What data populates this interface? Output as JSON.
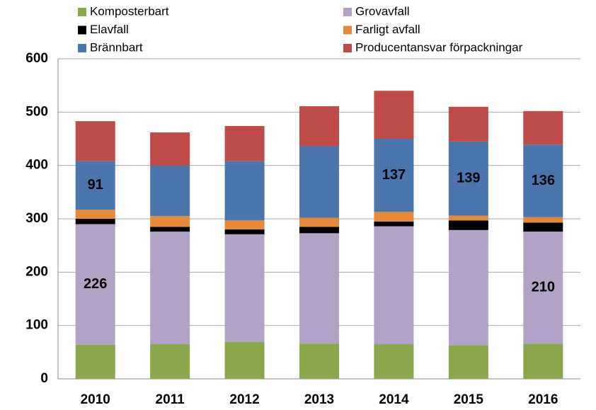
{
  "chart_data": {
    "type": "stacked_bar",
    "categories": [
      "2010",
      "2011",
      "2012",
      "2013",
      "2014",
      "2015",
      "2016"
    ],
    "series": [
      {
        "name": "Komposterbart",
        "color": "#8aa84b",
        "values": [
          64,
          65,
          69,
          66,
          65,
          63,
          66
        ]
      },
      {
        "name": "Grovavfall",
        "color": "#b3a2c7",
        "values": [
          226,
          211,
          202,
          207,
          221,
          216,
          210
        ],
        "value_labels": [
          "226",
          null,
          null,
          null,
          null,
          null,
          "210"
        ]
      },
      {
        "name": "Elavfall",
        "color": "#000000",
        "values": [
          10,
          9,
          9,
          12,
          9,
          18,
          17
        ]
      },
      {
        "name": "Farligt avfall",
        "color": "#e8893a",
        "values": [
          17,
          20,
          17,
          17,
          18,
          9,
          10
        ]
      },
      {
        "name": "Brännbart",
        "color": "#4a76ad",
        "values": [
          91,
          95,
          111,
          134,
          137,
          139,
          136
        ],
        "value_labels": [
          "91",
          null,
          null,
          null,
          "137",
          "139",
          "136"
        ]
      },
      {
        "name": "Producentansvar förpackningar",
        "color": "#be4b48",
        "values": [
          75,
          62,
          66,
          75,
          90,
          65,
          63
        ]
      }
    ],
    "ylim": [
      0,
      600
    ],
    "yticks": [
      0,
      100,
      200,
      300,
      400,
      500,
      600
    ],
    "grid": true
  }
}
